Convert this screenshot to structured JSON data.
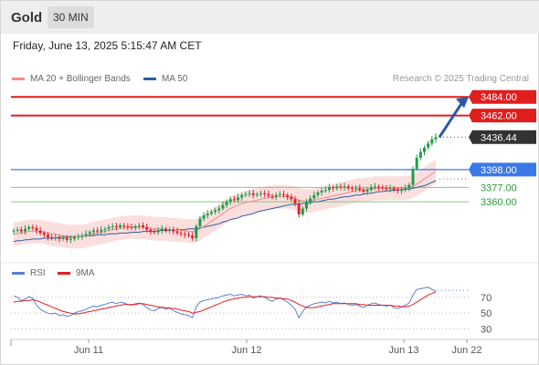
{
  "header": {
    "instrument": "Gold",
    "interval": "30 MIN",
    "datetime": "Friday, June 13, 2025 5:15:47 AM CET",
    "source": "Research © 2025 Trading Central"
  },
  "legend": {
    "items": [
      {
        "label": "MA 20 + Bollinger Bands",
        "color": "#f28c8c"
      },
      {
        "label": "MA 50",
        "color": "#2d5fa0"
      }
    ]
  },
  "rsi_legend": {
    "items": [
      {
        "label": "RSI",
        "color": "#5b7fd6"
      },
      {
        "label": "9MA",
        "color": "#e02020"
      }
    ]
  },
  "colors": {
    "up": "#1e9e4a",
    "down": "#e0242a",
    "resistance": "#e01e1e",
    "pivot": "#3b78e7",
    "support": "#2b9a3a",
    "last": "#333333",
    "arrow": "#2a5aa8"
  },
  "chart_data": [
    {
      "type": "candlestick",
      "yrange": [
        3290,
        3495
      ],
      "x_ticks": [
        "Jun 11",
        "Jun 12",
        "Jun 13",
        "Jun 22"
      ],
      "levels": [
        {
          "value": 3484.0,
          "label": "3484.00",
          "kind": "resistance"
        },
        {
          "value": 3462.0,
          "label": "3462.00",
          "kind": "resistance"
        },
        {
          "value": 3436.44,
          "label": "3436.44",
          "kind": "last"
        },
        {
          "value": 3398.0,
          "label": "3398.00",
          "kind": "pivot"
        },
        {
          "value": 3377.0,
          "label": "3377.00",
          "kind": "support"
        },
        {
          "value": 3360.0,
          "label": "3360.00",
          "kind": "support"
        }
      ],
      "projection": {
        "from": 3436.44,
        "to": 3484.0
      },
      "close": [
        3326,
        3327,
        3325,
        3328,
        3330,
        3329,
        3326,
        3323,
        3321,
        3318,
        3317,
        3318,
        3316,
        3317,
        3315,
        3316,
        3318,
        3319,
        3320,
        3322,
        3324,
        3326,
        3325,
        3327,
        3328,
        3330,
        3331,
        3330,
        3332,
        3331,
        3330,
        3329,
        3331,
        3332,
        3330,
        3327,
        3325,
        3324,
        3326,
        3328,
        3326,
        3327,
        3325,
        3323,
        3322,
        3321,
        3320,
        3317,
        3331,
        3340,
        3344,
        3346,
        3348,
        3350,
        3352,
        3356,
        3360,
        3363,
        3362,
        3365,
        3368,
        3369,
        3370,
        3368,
        3369,
        3370,
        3369,
        3367,
        3366,
        3368,
        3369,
        3368,
        3366,
        3363,
        3358,
        3345,
        3352,
        3360,
        3364,
        3368,
        3371,
        3373,
        3374,
        3377,
        3376,
        3378,
        3377,
        3378,
        3376,
        3375,
        3376,
        3374,
        3372,
        3374,
        3377,
        3378,
        3377,
        3376,
        3375,
        3376,
        3374,
        3373,
        3374,
        3376,
        3380,
        3399,
        3412,
        3419,
        3424,
        3429,
        3434,
        3436.44
      ],
      "ma20": [
        3322,
        3322,
        3323,
        3324,
        3325,
        3325,
        3325,
        3325,
        3324,
        3323,
        3322,
        3321,
        3321,
        3320,
        3319,
        3319,
        3319,
        3319,
        3319,
        3320,
        3321,
        3322,
        3323,
        3324,
        3325,
        3326,
        3327,
        3328,
        3329,
        3329,
        3330,
        3330,
        3330,
        3330,
        3330,
        3329,
        3329,
        3328,
        3328,
        3328,
        3328,
        3327,
        3327,
        3327,
        3326,
        3326,
        3325,
        3325,
        3326,
        3328,
        3331,
        3334,
        3337,
        3340,
        3343,
        3346,
        3349,
        3352,
        3354,
        3356,
        3358,
        3359,
        3360,
        3361,
        3362,
        3363,
        3364,
        3365,
        3365,
        3366,
        3366,
        3366,
        3366,
        3365,
        3364,
        3362,
        3361,
        3361,
        3361,
        3362,
        3363,
        3364,
        3365,
        3366,
        3367,
        3368,
        3369,
        3370,
        3371,
        3372,
        3373,
        3374,
        3374,
        3375,
        3375,
        3376,
        3376,
        3376,
        3376,
        3376,
        3376,
        3376,
        3376,
        3376,
        3377,
        3378,
        3381,
        3384,
        3387,
        3390,
        3393,
        3396
      ],
      "ma50": [
        3313,
        3314,
        3314,
        3315,
        3315,
        3316,
        3316,
        3316,
        3317,
        3317,
        3317,
        3317,
        3318,
        3318,
        3318,
        3318,
        3319,
        3319,
        3319,
        3320,
        3320,
        3320,
        3321,
        3321,
        3321,
        3322,
        3322,
        3322,
        3323,
        3323,
        3323,
        3324,
        3324,
        3324,
        3325,
        3325,
        3325,
        3325,
        3326,
        3326,
        3326,
        3326,
        3327,
        3327,
        3327,
        3327,
        3328,
        3328,
        3328,
        3329,
        3330,
        3331,
        3332,
        3333,
        3334,
        3336,
        3337,
        3339,
        3340,
        3341,
        3343,
        3344,
        3345,
        3346,
        3348,
        3349,
        3350,
        3351,
        3352,
        3353,
        3354,
        3355,
        3356,
        3357,
        3357,
        3357,
        3358,
        3358,
        3359,
        3360,
        3360,
        3361,
        3362,
        3363,
        3363,
        3364,
        3365,
        3366,
        3366,
        3367,
        3368,
        3368,
        3369,
        3370,
        3370,
        3371,
        3372,
        3372,
        3373,
        3373,
        3374,
        3374,
        3374,
        3375,
        3375,
        3376,
        3377,
        3378,
        3379,
        3381,
        3383,
        3385
      ],
      "rsi_axis": [
        30,
        50,
        70
      ],
      "rsi": [
        72,
        70,
        66,
        68,
        71,
        69,
        60,
        55,
        52,
        50,
        49,
        50,
        47,
        48,
        46,
        47,
        50,
        52,
        53,
        55,
        57,
        59,
        58,
        60,
        61,
        63,
        64,
        62,
        64,
        63,
        61,
        60,
        62,
        63,
        61,
        57,
        54,
        53,
        56,
        58,
        55,
        57,
        53,
        51,
        49,
        48,
        47,
        44,
        58,
        64,
        66,
        67,
        68,
        69,
        70,
        72,
        73,
        74,
        72,
        73,
        74,
        72,
        73,
        69,
        71,
        72,
        70,
        67,
        65,
        68,
        69,
        67,
        64,
        60,
        55,
        44,
        52,
        58,
        60,
        62,
        63,
        64,
        63,
        65,
        63,
        64,
        62,
        63,
        61,
        60,
        61,
        59,
        57,
        60,
        62,
        63,
        61,
        60,
        59,
        60,
        57,
        56,
        58,
        60,
        63,
        73,
        80,
        81,
        82,
        83,
        80,
        78
      ],
      "rsi9": [
        64,
        65,
        65,
        66,
        66,
        67,
        66,
        64,
        62,
        60,
        58,
        56,
        54,
        52,
        51,
        50,
        49,
        49,
        50,
        51,
        52,
        53,
        54,
        55,
        56,
        57,
        58,
        59,
        60,
        61,
        61,
        61,
        61,
        62,
        62,
        61,
        60,
        59,
        58,
        57,
        57,
        56,
        56,
        55,
        54,
        53,
        52,
        50,
        51,
        52,
        54,
        56,
        58,
        60,
        62,
        64,
        66,
        67,
        68,
        69,
        70,
        70,
        71,
        71,
        71,
        71,
        71,
        70,
        70,
        69,
        69,
        68,
        68,
        66,
        64,
        61,
        59,
        57,
        57,
        57,
        58,
        59,
        60,
        61,
        62,
        62,
        62,
        62,
        62,
        62,
        62,
        61,
        61,
        60,
        60,
        60,
        60,
        60,
        60,
        60,
        59,
        59,
        58,
        58,
        59,
        61,
        64,
        67,
        70,
        73,
        75,
        77
      ]
    }
  ]
}
